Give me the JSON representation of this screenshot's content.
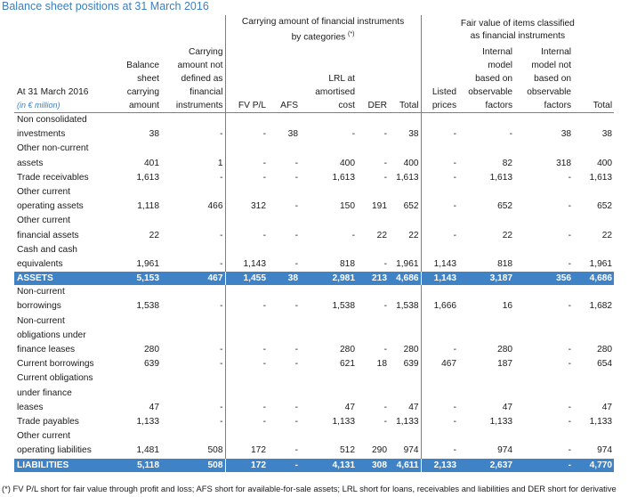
{
  "title": "Balance sheet positions at 31 March 2016",
  "group_headers": {
    "carrying": "Carrying amount of financial instruments\nby categories",
    "carrying_note": "(*)",
    "fair_value": "Fair value of items classified\nas financial instruments"
  },
  "col_headers": {
    "label": "At 31 March 2016",
    "unit": "(in € million)",
    "bs_carrying": "Balance\nsheet\ncarrying\namount",
    "not_fi": "Carrying\namount not\ndefined as\nfinancial\ninstruments",
    "fvpl": "FV P/L",
    "afs": "AFS",
    "lrl": "LRL at\namortised\ncost",
    "der": "DER",
    "total1": "Total",
    "listed": "Listed\nprices",
    "internal": "Internal\nmodel\nbased on\nobservable\nfactors",
    "internal_not": "Internal\nmodel not\nbased on\nobservable\nfactors",
    "total2": "Total"
  },
  "rows": [
    {
      "label": [
        "Non consolidated",
        "investments"
      ],
      "values": [
        "38",
        "-",
        "-",
        "38",
        "-",
        "-",
        "38",
        "-",
        "-",
        "38",
        "38"
      ]
    },
    {
      "label": [
        "Other non-current",
        "assets"
      ],
      "values": [
        "401",
        "1",
        "-",
        "-",
        "400",
        "-",
        "400",
        "-",
        "82",
        "318",
        "400"
      ]
    },
    {
      "label": [
        "Trade receivables"
      ],
      "values": [
        "1,613",
        "-",
        "-",
        "-",
        "1,613",
        "-",
        "1,613",
        "-",
        "1,613",
        "-",
        "1,613"
      ]
    },
    {
      "label": [
        "Other current",
        "operating assets"
      ],
      "values": [
        "1,118",
        "466",
        "312",
        "-",
        "150",
        "191",
        "652",
        "-",
        "652",
        "-",
        "652"
      ]
    },
    {
      "label": [
        "Other current",
        "financial assets"
      ],
      "values": [
        "22",
        "-",
        "-",
        "-",
        "-",
        "22",
        "22",
        "-",
        "22",
        "-",
        "22"
      ]
    },
    {
      "label": [
        "Cash and cash",
        "equivalents"
      ],
      "values": [
        "1,961",
        "-",
        "1,143",
        "-",
        "818",
        "-",
        "1,961",
        "1,143",
        "818",
        "-",
        "1,961"
      ]
    },
    {
      "total": true,
      "label": [
        "ASSETS"
      ],
      "values": [
        "5,153",
        "467",
        "1,455",
        "38",
        "2,981",
        "213",
        "4,686",
        "1,143",
        "3,187",
        "356",
        "4,686"
      ]
    },
    {
      "label": [
        "Non-current",
        "borrowings"
      ],
      "values": [
        "1,538",
        "-",
        "-",
        "-",
        "1,538",
        "-",
        "1,538",
        "1,666",
        "16",
        "-",
        "1,682"
      ]
    },
    {
      "label": [
        "Non-current",
        "obligations under",
        "finance leases"
      ],
      "values": [
        "280",
        "-",
        "-",
        "-",
        "280",
        "-",
        "280",
        "-",
        "280",
        "-",
        "280"
      ]
    },
    {
      "label": [
        "Current borrowings"
      ],
      "values": [
        "639",
        "-",
        "-",
        "-",
        "621",
        "18",
        "639",
        "467",
        "187",
        "-",
        "654"
      ]
    },
    {
      "label": [
        "Current obligations",
        "under finance",
        "leases"
      ],
      "values": [
        "47",
        "-",
        "-",
        "-",
        "47",
        "-",
        "47",
        "-",
        "47",
        "-",
        "47"
      ]
    },
    {
      "label": [
        "Trade payables"
      ],
      "values": [
        "1,133",
        "-",
        "-",
        "-",
        "1,133",
        "-",
        "1,133",
        "-",
        "1,133",
        "-",
        "1,133"
      ]
    },
    {
      "label": [
        "Other current",
        "operating liabilities"
      ],
      "values": [
        "1,481",
        "508",
        "172",
        "-",
        "512",
        "290",
        "974",
        "-",
        "974",
        "-",
        "974"
      ]
    },
    {
      "total": true,
      "label": [
        "LIABILITIES"
      ],
      "values": [
        "5,118",
        "508",
        "172",
        "-",
        "4,131",
        "308",
        "4,611",
        "2,133",
        "2,637",
        "-",
        "4,770"
      ]
    }
  ],
  "footnote": "(*)  FV P/L short for fair value through profit and loss; AFS short for available-for-sale assets; LRL short for loans, receivables and liabilities and DER short for derivative",
  "colors": {
    "accent": "#3f82c6",
    "title": "#3b7fc0"
  }
}
